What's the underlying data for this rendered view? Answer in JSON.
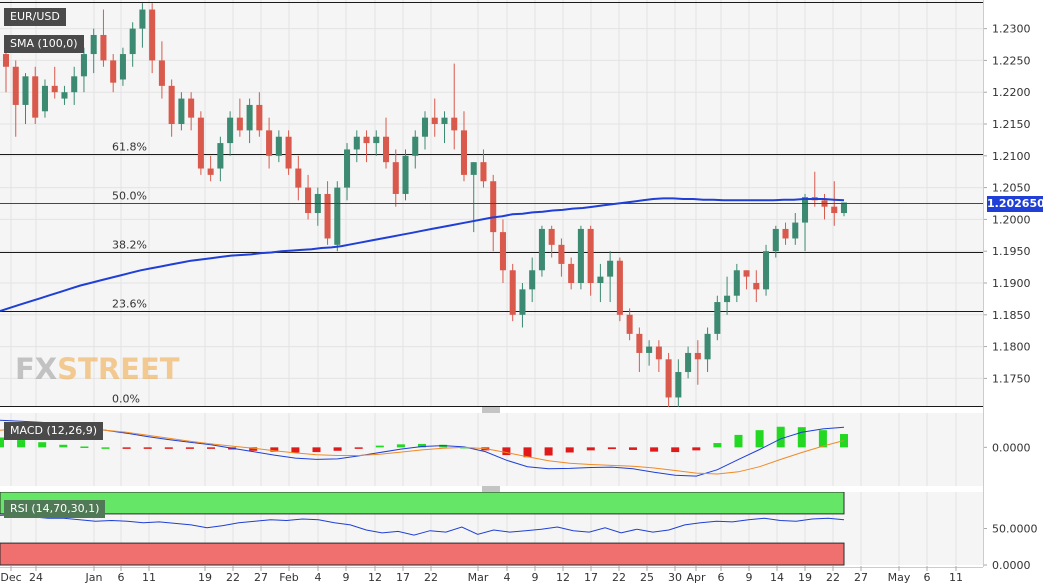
{
  "instrument": "EUR/USD",
  "indicators": {
    "sma": "SMA (100,0)",
    "macd": "MACD (12,26,9)",
    "rsi": "RSI (14,70,30,1)"
  },
  "logo": {
    "part1": "FX",
    "part2": "STREET"
  },
  "last_price": "1.202650",
  "colors": {
    "up": "#3c8a72",
    "down": "#d9594c",
    "sma": "#1f3fd6",
    "macd_line": "#1f3fd6",
    "signal_line": "#f08a24",
    "hist_pos": "#22d822",
    "hist_neg": "#e01a1a",
    "rsi_line": "#1f3fd6",
    "overbought": "#66e666",
    "oversold": "#f07070"
  },
  "chart_data": [
    {
      "type": "candlestick",
      "name": "EUR/USD daily",
      "x_ticks": [
        "Dec",
        "24",
        "Jan",
        "6",
        "11",
        "19",
        "22",
        "27",
        "Feb",
        "4",
        "9",
        "12",
        "17",
        "22",
        "Mar",
        "4",
        "9",
        "12",
        "17",
        "22",
        "25",
        "30",
        "Apr",
        "6",
        "9",
        "14",
        "19",
        "22",
        "27",
        "May",
        "6",
        "11"
      ],
      "y_ticks": [
        "1.2300",
        "1.2250",
        "1.2200",
        "1.2150",
        "1.2100",
        "1.2050",
        "1.2000",
        "1.1950",
        "1.1900",
        "1.1850",
        "1.1800",
        "1.1750"
      ],
      "ylim": [
        1.1705,
        1.2345
      ],
      "fibonacci": [
        {
          "label": "61.8%",
          "value": 1.2103
        },
        {
          "label": "50.0%",
          "value": 1.2026
        },
        {
          "label": "38.2%",
          "value": 1.1949
        },
        {
          "label": "23.6%",
          "value": 1.1856
        },
        {
          "label": "0.0%",
          "value": 1.1707
        }
      ],
      "last_price": 1.20265,
      "ohlc": [
        [
          1.226,
          1.229,
          1.22,
          1.224
        ],
        [
          1.224,
          1.225,
          1.213,
          1.218
        ],
        [
          1.218,
          1.223,
          1.215,
          1.2225
        ],
        [
          1.2225,
          1.224,
          1.215,
          1.216
        ],
        [
          1.217,
          1.222,
          1.216,
          1.221
        ],
        [
          1.221,
          1.224,
          1.219,
          1.22
        ],
        [
          1.219,
          1.221,
          1.218,
          1.22
        ],
        [
          1.22,
          1.224,
          1.218,
          1.2225
        ],
        [
          1.2225,
          1.227,
          1.22,
          1.226
        ],
        [
          1.226,
          1.23,
          1.223,
          1.229
        ],
        [
          1.229,
          1.233,
          1.224,
          1.225
        ],
        [
          1.225,
          1.226,
          1.22,
          1.2215
        ],
        [
          1.222,
          1.227,
          1.221,
          1.226
        ],
        [
          1.226,
          1.231,
          1.224,
          1.23
        ],
        [
          1.23,
          1.234,
          1.227,
          1.233
        ],
        [
          1.233,
          1.234,
          1.223,
          1.225
        ],
        [
          1.225,
          1.228,
          1.219,
          1.221
        ],
        [
          1.221,
          1.222,
          1.213,
          1.215
        ],
        [
          1.215,
          1.22,
          1.214,
          1.219
        ],
        [
          1.219,
          1.22,
          1.214,
          1.216
        ],
        [
          1.216,
          1.217,
          1.207,
          1.208
        ],
        [
          1.208,
          1.21,
          1.206,
          1.207
        ],
        [
          1.208,
          1.213,
          1.206,
          1.212
        ],
        [
          1.212,
          1.217,
          1.21,
          1.216
        ],
        [
          1.216,
          1.219,
          1.213,
          1.214
        ],
        [
          1.214,
          1.219,
          1.212,
          1.218
        ],
        [
          1.218,
          1.22,
          1.213,
          1.214
        ],
        [
          1.214,
          1.216,
          1.208,
          1.21
        ],
        [
          1.21,
          1.214,
          1.209,
          1.213
        ],
        [
          1.213,
          1.214,
          1.207,
          1.208
        ],
        [
          1.208,
          1.21,
          1.203,
          1.205
        ],
        [
          1.205,
          1.207,
          1.2,
          1.201
        ],
        [
          1.201,
          1.205,
          1.199,
          1.204
        ],
        [
          1.204,
          1.206,
          1.196,
          1.197
        ],
        [
          1.196,
          1.206,
          1.195,
          1.205
        ],
        [
          1.205,
          1.212,
          1.203,
          1.211
        ],
        [
          1.211,
          1.214,
          1.209,
          1.213
        ],
        [
          1.213,
          1.214,
          1.209,
          1.212
        ],
        [
          1.212,
          1.214,
          1.21,
          1.213
        ],
        [
          1.213,
          1.216,
          1.208,
          1.209
        ],
        [
          1.209,
          1.211,
          1.202,
          1.204
        ],
        [
          1.204,
          1.211,
          1.203,
          1.21
        ],
        [
          1.21,
          1.214,
          1.208,
          1.213
        ],
        [
          1.213,
          1.217,
          1.211,
          1.216
        ],
        [
          1.216,
          1.219,
          1.213,
          1.215
        ],
        [
          1.215,
          1.217,
          1.212,
          1.216
        ],
        [
          1.216,
          1.2245,
          1.211,
          1.214
        ],
        [
          1.214,
          1.217,
          1.206,
          1.207
        ],
        [
          1.207,
          1.209,
          1.198,
          1.209
        ],
        [
          1.209,
          1.211,
          1.205,
          1.206
        ],
        [
          1.206,
          1.207,
          1.195,
          1.198
        ],
        [
          1.198,
          1.2,
          1.19,
          1.192
        ],
        [
          1.192,
          1.193,
          1.184,
          1.185
        ],
        [
          1.185,
          1.19,
          1.183,
          1.189
        ],
        [
          1.189,
          1.194,
          1.187,
          1.192
        ],
        [
          1.192,
          1.199,
          1.191,
          1.1985
        ],
        [
          1.1985,
          1.199,
          1.194,
          1.196
        ],
        [
          1.196,
          1.197,
          1.191,
          1.193
        ],
        [
          1.193,
          1.194,
          1.189,
          1.19
        ],
        [
          1.19,
          1.199,
          1.189,
          1.1985
        ],
        [
          1.1985,
          1.199,
          1.188,
          1.19
        ],
        [
          1.19,
          1.193,
          1.187,
          1.191
        ],
        [
          1.191,
          1.195,
          1.187,
          1.1935
        ],
        [
          1.1935,
          1.194,
          1.184,
          1.185
        ],
        [
          1.185,
          1.186,
          1.181,
          1.182
        ],
        [
          1.182,
          1.183,
          1.176,
          1.179
        ],
        [
          1.179,
          1.181,
          1.177,
          1.18
        ],
        [
          1.18,
          1.181,
          1.176,
          1.178
        ],
        [
          1.178,
          1.179,
          1.1705,
          1.172
        ],
        [
          1.172,
          1.178,
          1.1705,
          1.176
        ],
        [
          1.176,
          1.18,
          1.175,
          1.179
        ],
        [
          1.179,
          1.181,
          1.174,
          1.178
        ],
        [
          1.178,
          1.183,
          1.176,
          1.182
        ],
        [
          1.182,
          1.188,
          1.181,
          1.187
        ],
        [
          1.187,
          1.191,
          1.185,
          1.188
        ],
        [
          1.188,
          1.193,
          1.187,
          1.192
        ],
        [
          1.192,
          1.192,
          1.189,
          1.191
        ],
        [
          1.19,
          1.192,
          1.187,
          1.189
        ],
        [
          1.189,
          1.196,
          1.188,
          1.195
        ],
        [
          1.195,
          1.199,
          1.194,
          1.1985
        ],
        [
          1.1985,
          1.1995,
          1.196,
          1.197
        ],
        [
          1.197,
          1.201,
          1.196,
          1.1995
        ],
        [
          1.1995,
          1.204,
          1.195,
          1.2035
        ],
        [
          1.2035,
          1.2075,
          1.202,
          1.203
        ],
        [
          1.203,
          1.204,
          1.2,
          1.202
        ],
        [
          1.202,
          1.206,
          1.199,
          1.201
        ],
        [
          1.201,
          1.2025,
          1.2005,
          1.20265
        ]
      ],
      "sma_100": [
        1.1856,
        1.1861,
        1.1866,
        1.1871,
        1.1876,
        1.1881,
        1.1886,
        1.1891,
        1.1896,
        1.19,
        1.1904,
        1.1908,
        1.1912,
        1.1916,
        1.192,
        1.1923,
        1.1926,
        1.1929,
        1.1932,
        1.1935,
        1.1937,
        1.1939,
        1.1941,
        1.1943,
        1.1944,
        1.1945,
        1.1947,
        1.1948,
        1.195,
        1.1951,
        1.1952,
        1.1953,
        1.1955,
        1.1956,
        1.1958,
        1.1961,
        1.1964,
        1.1967,
        1.197,
        1.1973,
        1.1976,
        1.1979,
        1.1982,
        1.1985,
        1.1988,
        1.1991,
        1.1994,
        1.1997,
        1.2,
        1.2003,
        1.2005,
        1.2008,
        1.2009,
        1.2011,
        1.2012,
        1.2014,
        1.2015,
        1.2017,
        1.2018,
        1.202,
        1.2022,
        1.2024,
        1.2026,
        1.2028,
        1.203,
        1.2032,
        1.2033,
        1.2033,
        1.2032,
        1.2032,
        1.2031,
        1.2031,
        1.203,
        1.203,
        1.203,
        1.203,
        1.203,
        1.203,
        1.2031,
        1.2031,
        1.2032,
        1.2032,
        1.2032,
        1.2031,
        1.203
      ]
    },
    {
      "type": "macd",
      "name": "MACD (12,26,9)",
      "y_ticks": [
        "0.0000"
      ],
      "ylim": [
        -0.009,
        0.008
      ],
      "macd": [
        0.0063,
        0.0061,
        0.0058,
        0.0052,
        0.0046,
        0.004,
        0.0033,
        0.0025,
        0.0018,
        0.0012,
        0.0006,
        -0.0002,
        -0.001,
        -0.0018,
        -0.0025,
        -0.0028,
        -0.0027,
        -0.002,
        -0.0012,
        -0.0004,
        0.0002,
        0.0004,
        0.0001,
        -0.001,
        -0.003,
        -0.0045,
        -0.005,
        -0.0049,
        -0.0047,
        -0.0046,
        -0.005,
        -0.0058,
        -0.0065,
        -0.0067,
        -0.0052,
        -0.0028,
        -0.0005,
        0.002,
        0.0035,
        0.0043,
        0.0047
      ],
      "signal": [
        0.004,
        0.0044,
        0.0046,
        0.0046,
        0.0044,
        0.004,
        0.0035,
        0.0028,
        0.0021,
        0.0014,
        0.0008,
        0.0003,
        -0.0002,
        -0.0008,
        -0.0013,
        -0.0017,
        -0.0019,
        -0.0019,
        -0.0016,
        -0.0011,
        -0.0006,
        -0.0002,
        0.0,
        -0.0003,
        -0.0012,
        -0.0022,
        -0.0031,
        -0.0037,
        -0.004,
        -0.0042,
        -0.0044,
        -0.0048,
        -0.0054,
        -0.006,
        -0.0062,
        -0.0057,
        -0.0045,
        -0.0028,
        -0.0012,
        0.0003,
        0.0016
      ]
    },
    {
      "type": "rsi",
      "name": "RSI (14,70,30,1)",
      "y_ticks": [
        "50.0000",
        "0.0000"
      ],
      "overbought": 70,
      "oversold": 30,
      "ylim": [
        0,
        100
      ],
      "rsi": [
        68,
        69,
        66,
        64,
        64,
        62,
        60,
        61,
        60,
        58,
        59,
        57,
        55,
        51,
        54,
        58,
        60,
        62,
        61,
        63,
        62,
        58,
        55,
        48,
        44,
        46,
        41,
        47,
        45,
        52,
        42,
        48,
        45,
        47,
        49,
        52,
        47,
        45,
        51,
        44,
        49,
        45,
        48,
        55,
        58,
        60,
        59,
        62,
        64,
        61,
        60,
        63,
        64,
        62
      ]
    }
  ]
}
